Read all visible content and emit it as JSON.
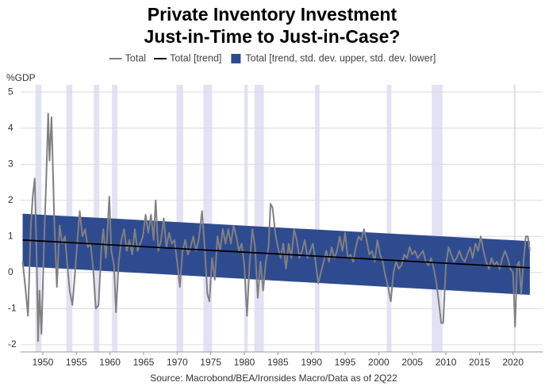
{
  "chart_data": {
    "type": "line",
    "title": [
      "Private Inventory Investment",
      "Just-in-Time to Just-in-Case?"
    ],
    "y_label": "%GDP",
    "source": "Source: Macrobond/BEA/Ironsides Macro/Data as of 2Q22",
    "xlim": [
      1946.7,
      2024.4
    ],
    "ylim": [
      -2.2,
      5.2
    ],
    "xticks": [
      1950,
      1955,
      1960,
      1965,
      1970,
      1975,
      1980,
      1985,
      1990,
      1995,
      2000,
      2005,
      2010,
      2015,
      2020
    ],
    "yticks": [
      -2,
      -1,
      0,
      1,
      2,
      3,
      4,
      5
    ],
    "grid": true,
    "legend": "top",
    "recession_color": "#e2e2f4",
    "recessions": [
      [
        1948.9,
        1949.8
      ],
      [
        1953.5,
        1954.4
      ],
      [
        1957.6,
        1958.4
      ],
      [
        1960.3,
        1961.1
      ],
      [
        1969.9,
        1970.9
      ],
      [
        1973.9,
        1975.2
      ],
      [
        1980.0,
        1980.5
      ],
      [
        1981.5,
        1982.9
      ],
      [
        1990.5,
        1991.2
      ],
      [
        2001.2,
        2001.9
      ],
      [
        2007.9,
        2009.5
      ],
      [
        2020.1,
        2020.4
      ]
    ],
    "band": {
      "name": "Total [trend, std. dev. upper, std. dev. lower]",
      "color": "#2f4b90",
      "x": [
        1947.0,
        2022.5
      ],
      "upper": [
        1.63,
        0.87
      ],
      "lower": [
        0.17,
        -0.62
      ]
    },
    "series": [
      {
        "name": "Total",
        "color": "#808080",
        "x": [
          1947.0,
          1947.4,
          1947.8,
          1948.2,
          1948.5,
          1948.8,
          1949.1,
          1949.3,
          1949.5,
          1949.8,
          1950.2,
          1950.5,
          1950.8,
          1951.0,
          1951.3,
          1951.7,
          1952.1,
          1952.5,
          1952.9,
          1953.3,
          1953.7,
          1954.0,
          1954.4,
          1954.8,
          1955.2,
          1955.5,
          1955.9,
          1956.3,
          1956.7,
          1957.1,
          1957.5,
          1957.9,
          1958.3,
          1958.7,
          1959.0,
          1959.4,
          1959.9,
          1960.2,
          1960.6,
          1960.9,
          1961.3,
          1961.7,
          1962.1,
          1962.5,
          1962.9,
          1963.3,
          1963.7,
          1964.1,
          1964.5,
          1964.9,
          1965.3,
          1965.7,
          1966.1,
          1966.5,
          1966.8,
          1967.2,
          1967.6,
          1968.0,
          1968.4,
          1968.8,
          1969.2,
          1969.6,
          1970.0,
          1970.4,
          1970.8,
          1971.2,
          1971.6,
          1972.0,
          1972.4,
          1972.8,
          1973.2,
          1973.7,
          1974.1,
          1974.5,
          1974.8,
          1975.2,
          1975.6,
          1976.0,
          1976.4,
          1976.8,
          1977.2,
          1977.6,
          1978.0,
          1978.4,
          1978.8,
          1979.2,
          1979.6,
          1980.0,
          1980.4,
          1980.8,
          1981.2,
          1981.6,
          1982.0,
          1982.4,
          1982.8,
          1983.2,
          1983.6,
          1983.9,
          1984.2,
          1984.6,
          1985.0,
          1985.4,
          1985.8,
          1986.2,
          1986.6,
          1987.0,
          1987.4,
          1987.8,
          1988.2,
          1988.6,
          1989.0,
          1989.4,
          1989.8,
          1990.2,
          1990.6,
          1991.0,
          1991.4,
          1991.8,
          1992.2,
          1992.6,
          1993.0,
          1993.4,
          1993.8,
          1994.2,
          1994.6,
          1995.0,
          1995.4,
          1995.8,
          1996.2,
          1996.6,
          1997.0,
          1997.4,
          1997.8,
          1998.2,
          1998.6,
          1999.0,
          1999.4,
          1999.8,
          2000.2,
          2000.6,
          2001.0,
          2001.4,
          2001.8,
          2002.2,
          2002.6,
          2003.0,
          2003.4,
          2003.8,
          2004.2,
          2004.6,
          2005.0,
          2005.4,
          2005.8,
          2006.2,
          2006.6,
          2007.0,
          2007.4,
          2007.8,
          2008.2,
          2008.6,
          2009.0,
          2009.3,
          2009.6,
          2010.0,
          2010.4,
          2010.8,
          2011.2,
          2011.6,
          2012.0,
          2012.4,
          2012.8,
          2013.2,
          2013.6,
          2014.0,
          2014.4,
          2014.8,
          2015.2,
          2015.6,
          2016.0,
          2016.4,
          2016.8,
          2017.2,
          2017.6,
          2018.0,
          2018.4,
          2018.8,
          2019.2,
          2019.6,
          2020.0,
          2020.3,
          2020.6,
          2020.9,
          2021.2,
          2021.6,
          2021.9,
          2022.2,
          2022.5
        ],
        "values": [
          0.3,
          -0.4,
          -1.2,
          1.2,
          2.1,
          2.6,
          0.3,
          -1.9,
          -0.5,
          -1.7,
          0.9,
          2.5,
          4.4,
          3.1,
          4.3,
          1.5,
          -0.4,
          1.3,
          0.8,
          1.0,
          0.1,
          -0.5,
          -0.9,
          0.0,
          1.0,
          1.7,
          1.0,
          1.2,
          0.7,
          0.8,
          0.1,
          -1.0,
          -0.9,
          0.6,
          1.2,
          0.4,
          2.1,
          0.6,
          0.2,
          -1.1,
          0.3,
          0.9,
          1.2,
          0.6,
          0.9,
          0.5,
          1.2,
          0.6,
          0.8,
          1.0,
          1.6,
          1.1,
          1.6,
          0.9,
          2.0,
          0.6,
          0.9,
          1.5,
          0.7,
          1.1,
          0.8,
          0.9,
          0.3,
          -0.4,
          0.6,
          0.9,
          0.5,
          0.7,
          1.0,
          0.6,
          0.9,
          1.7,
          0.7,
          -0.6,
          -0.8,
          0.4,
          -0.2,
          1.0,
          0.6,
          1.2,
          0.8,
          1.2,
          0.8,
          1.3,
          1.0,
          0.6,
          0.8,
          0.2,
          -1.2,
          0.3,
          1.2,
          0.7,
          -0.7,
          0.3,
          -0.5,
          0.3,
          0.7,
          1.9,
          1.8,
          1.1,
          0.7,
          0.4,
          0.8,
          0.1,
          0.8,
          0.4,
          1.2,
          0.9,
          0.4,
          0.6,
          0.9,
          0.4,
          0.6,
          0.8,
          0.3,
          -0.3,
          0.0,
          0.3,
          0.6,
          0.3,
          0.7,
          0.4,
          0.6,
          1.0,
          0.6,
          1.1,
          0.4,
          0.5,
          0.3,
          0.7,
          1.0,
          0.9,
          1.2,
          0.9,
          0.5,
          0.6,
          0.3,
          0.9,
          0.5,
          0.3,
          -0.1,
          -0.4,
          -0.8,
          0.0,
          0.3,
          0.1,
          0.2,
          0.5,
          0.4,
          0.7,
          0.5,
          0.6,
          0.4,
          0.5,
          0.6,
          0.3,
          0.2,
          0.4,
          0.1,
          -0.3,
          -0.9,
          -1.4,
          -1.4,
          0.2,
          0.7,
          0.5,
          0.3,
          0.4,
          0.6,
          0.4,
          0.3,
          0.5,
          0.7,
          0.4,
          0.8,
          0.6,
          1.0,
          0.6,
          0.3,
          0.1,
          0.4,
          0.2,
          0.3,
          0.1,
          0.4,
          0.6,
          0.4,
          0.1,
          0.0,
          -1.5,
          0.2,
          0.3,
          -0.6,
          0.4,
          1.0,
          1.0,
          0.6
        ]
      },
      {
        "name": "Total [trend]",
        "color": "#000000",
        "x": [
          1947.0,
          2022.5
        ],
        "values": [
          0.9,
          0.13
        ]
      }
    ]
  }
}
